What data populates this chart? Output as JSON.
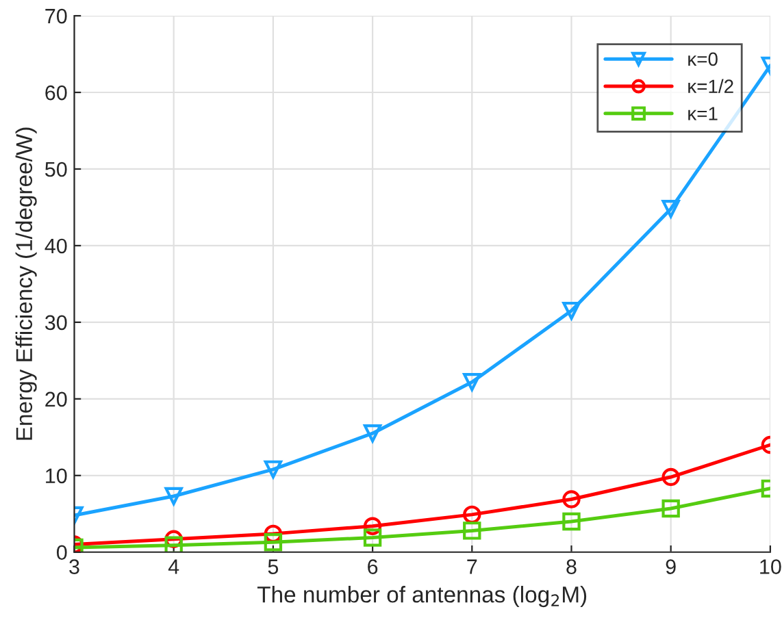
{
  "chart_data": {
    "type": "line",
    "xlabel": "The number of antennas (log$_{2}$M)",
    "ylabel": "Energy Efficiency (1/degree/W)",
    "x": [
      3,
      4,
      5,
      6,
      7,
      8,
      9,
      10
    ],
    "series": [
      {
        "name": "κ=0",
        "color": "#1aa3ff",
        "marker": "triangle",
        "values": [
          4.8,
          7.3,
          10.8,
          15.5,
          22.2,
          31.5,
          44.8,
          63.5
        ]
      },
      {
        "name": "κ=1/2",
        "color": "#ff0000",
        "marker": "circle",
        "values": [
          1.0,
          1.7,
          2.4,
          3.4,
          4.9,
          6.9,
          9.8,
          14.0
        ]
      },
      {
        "name": "κ=1",
        "color": "#55cc11",
        "marker": "square",
        "values": [
          0.6,
          0.9,
          1.3,
          1.9,
          2.8,
          4.0,
          5.7,
          8.3
        ]
      }
    ],
    "xlim": [
      3,
      10
    ],
    "xticks": [
      3,
      4,
      5,
      6,
      7,
      8,
      9,
      10
    ],
    "ylim": [
      0,
      70
    ],
    "yticks": [
      0,
      10,
      20,
      30,
      40,
      50,
      60,
      70
    ],
    "grid": true,
    "legend": "top right",
    "line_style": "solid"
  }
}
